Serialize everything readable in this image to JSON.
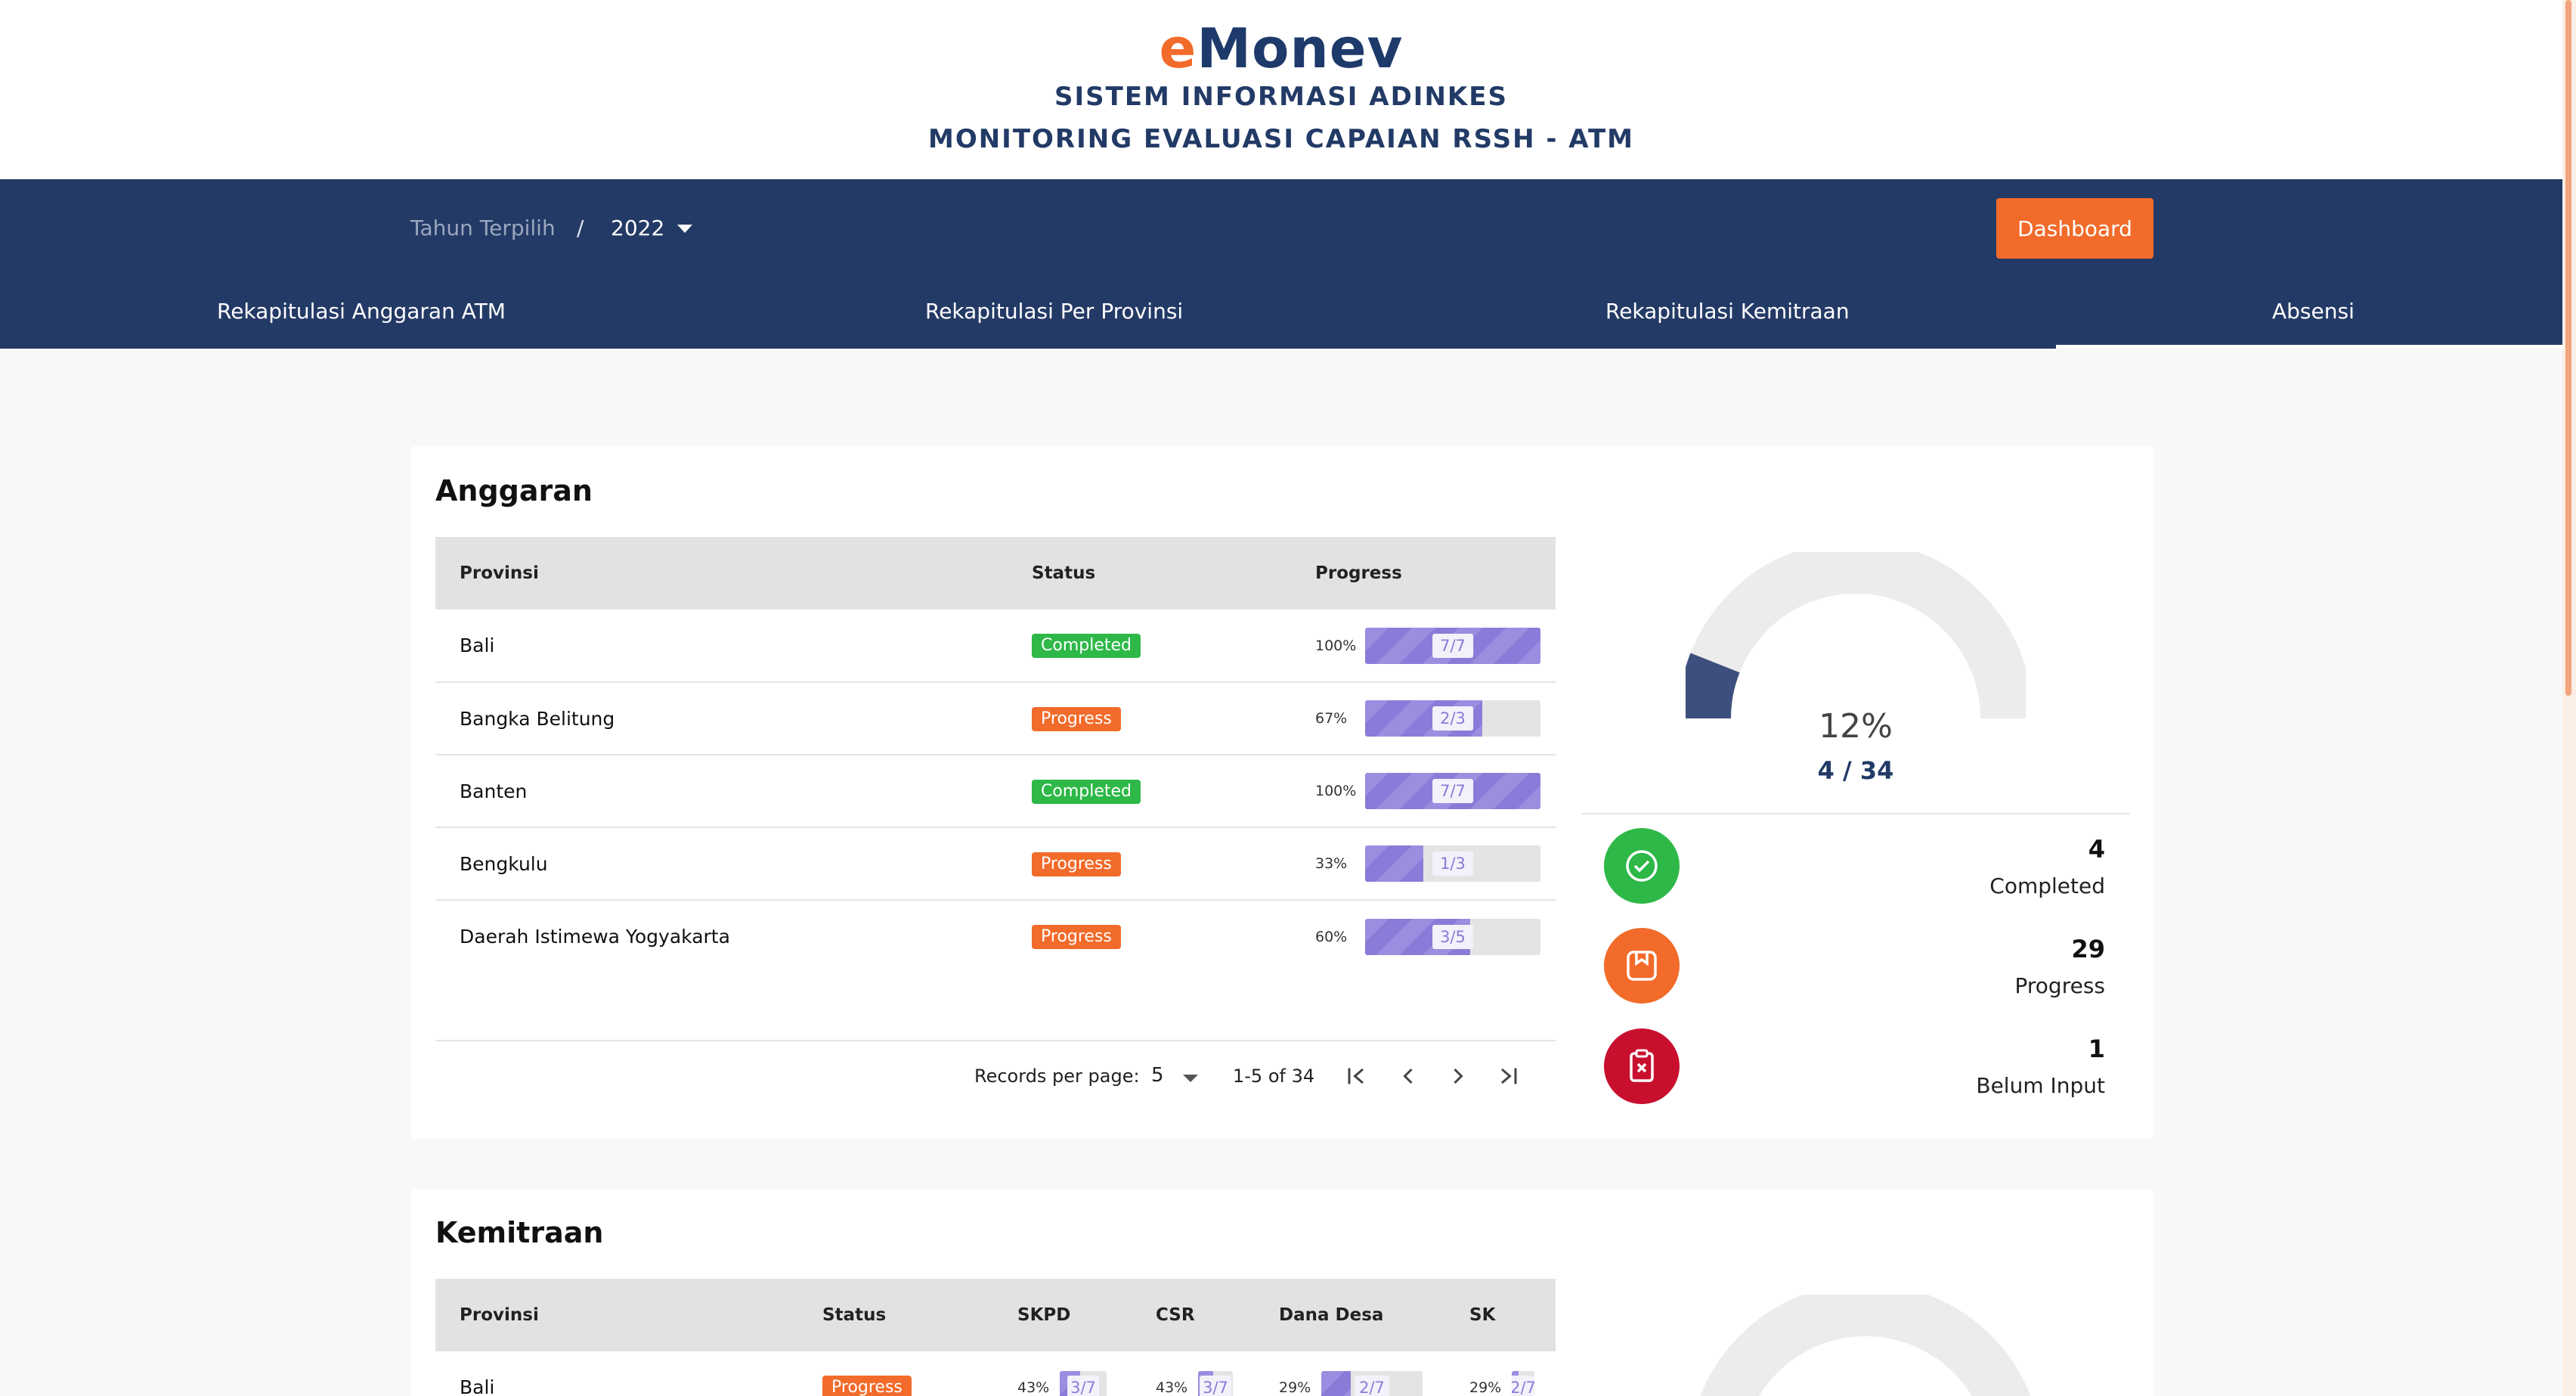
{
  "header": {
    "brand_e": "e",
    "brand_rest": "Monev",
    "subtitle1": "SISTEM INFORMASI ADINKES",
    "subtitle2": "MONITORING EVALUASI CAPAIAN RSSH - ATM"
  },
  "navbar": {
    "year_label": "Tahun Terpilih",
    "year_separator": "/",
    "year_value": "2022",
    "dashboard_label": "Dashboard",
    "tabs": [
      "Rekapitulasi Anggaran ATM",
      "Rekapitulasi Per Provinsi",
      "Rekapitulasi Kemitraan",
      "Absensi"
    ],
    "active_tab": "Absensi"
  },
  "anggaran": {
    "title": "Anggaran",
    "columns": [
      "Provinsi",
      "Status",
      "Progress"
    ],
    "rows": [
      {
        "provinsi": "Bali",
        "status": "Completed",
        "pct": "100%",
        "ratio": "7/7",
        "fraction": 1.0
      },
      {
        "provinsi": "Bangka Belitung",
        "status": "Progress",
        "pct": "67%",
        "ratio": "2/3",
        "fraction": 0.67
      },
      {
        "provinsi": "Banten",
        "status": "Completed",
        "pct": "100%",
        "ratio": "7/7",
        "fraction": 1.0
      },
      {
        "provinsi": "Bengkulu",
        "status": "Progress",
        "pct": "33%",
        "ratio": "1/3",
        "fraction": 0.33
      },
      {
        "provinsi": "Daerah Istimewa Yogyakarta",
        "status": "Progress",
        "pct": "60%",
        "ratio": "3/5",
        "fraction": 0.6
      }
    ],
    "pager": {
      "records_label": "Records per page:",
      "records_value": "5",
      "range": "1-5 of 34"
    }
  },
  "summary": {
    "gauge_pct": "12%",
    "gauge_count": "4 / 34",
    "gauge_fraction": 0.12,
    "stats": [
      {
        "value": "4",
        "label": "Completed",
        "color": "#2db847",
        "icon": "check-circle-icon"
      },
      {
        "value": "29",
        "label": "Progress",
        "color": "#f26b2a",
        "icon": "book-icon"
      },
      {
        "value": "1",
        "label": "Belum Input",
        "color": "#c8102e",
        "icon": "clipboard-x-icon"
      }
    ]
  },
  "kemitraan": {
    "title": "Kemitraan",
    "columns": [
      "Provinsi",
      "Status",
      "SKPD",
      "CSR",
      "Dana Desa",
      "SK"
    ],
    "rows": [
      {
        "provinsi": "Bali",
        "status": "Progress",
        "skpd": {
          "pct": "43%",
          "ratio": "3/7",
          "fraction": 0.43
        },
        "csr": {
          "pct": "43%",
          "ratio": "3/7",
          "fraction": 0.43
        },
        "dana_desa": {
          "pct": "29%",
          "ratio": "2/7",
          "fraction": 0.29
        },
        "sk": {
          "pct": "29%",
          "ratio": "2/7",
          "fraction": 0.29
        }
      }
    ]
  },
  "colors": {
    "navy": "#243a66",
    "accent_orange": "#f26b2a",
    "completed_green": "#2db847",
    "progress_purple": "#8a7bd8",
    "belum_red": "#c8102e"
  }
}
